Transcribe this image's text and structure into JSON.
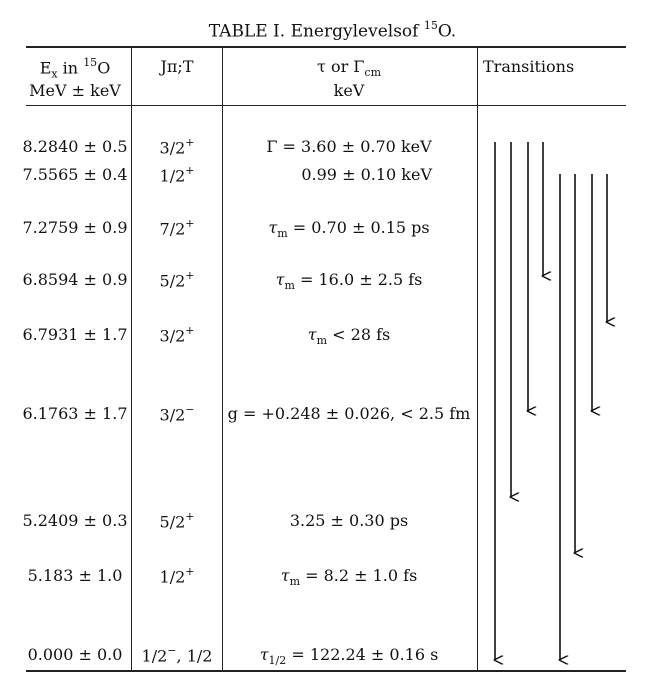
{
  "caption": {
    "prefix": "TABLE I. Energylevelsof ",
    "sup": "15",
    "suffix": "O."
  },
  "headers": {
    "ex_line1_pre": "E",
    "ex_line1_sub": "x",
    "ex_line1_mid": " in ",
    "ex_line1_sup": "15",
    "ex_line1_post": "O",
    "ex_line2": "MeV ± keV",
    "jpt": "Jπ;T",
    "tau_line1_pre": "τ or Γ",
    "tau_line1_sub": "cm",
    "tau_line2": "keV",
    "transitions": "Transitions"
  },
  "rows": [
    {
      "ex": "8.2840 ± 0.5",
      "jpi_base": "3/2",
      "jpi_sup": "+",
      "jpi_tail": "",
      "value_pre": "Γ = 3.60 ± 0.70 keV",
      "value_sub": "",
      "value_post": ""
    },
    {
      "ex": "7.5565 ± 0.4",
      "jpi_base": "1/2",
      "jpi_sup": "+",
      "jpi_tail": "",
      "value_pre": "0.99 ± 0.10 keV",
      "value_sub": "",
      "value_post": ""
    },
    {
      "ex": "7.2759 ± 0.9",
      "jpi_base": "7/2",
      "jpi_sup": "+",
      "jpi_tail": "",
      "value_pre": "τ",
      "value_sub": "m",
      "value_post": " = 0.70 ± 0.15 ps"
    },
    {
      "ex": "6.8594 ± 0.9",
      "jpi_base": "5/2",
      "jpi_sup": "+",
      "jpi_tail": "",
      "value_pre": "τ",
      "value_sub": "m",
      "value_post": " = 16.0 ± 2.5 fs"
    },
    {
      "ex": "6.7931 ± 1.7",
      "jpi_base": "3/2",
      "jpi_sup": "+",
      "jpi_tail": "",
      "value_pre": "τ",
      "value_sub": "m",
      "value_post": " < 28 fs"
    },
    {
      "ex": "6.1763 ± 1.7",
      "jpi_base": "3/2",
      "jpi_sup": "−",
      "jpi_tail": "",
      "value_pre": "g = +0.248 ± 0.026, < 2.5 fm",
      "value_sub": "",
      "value_post": ""
    },
    {
      "ex": "5.2409 ± 0.3",
      "jpi_base": "5/2",
      "jpi_sup": "+",
      "jpi_tail": "",
      "value_pre": "3.25 ± 0.30 ps",
      "value_sub": "",
      "value_post": ""
    },
    {
      "ex": "5.183 ± 1.0",
      "jpi_base": "1/2",
      "jpi_sup": "+",
      "jpi_tail": "",
      "value_pre": "τ",
      "value_sub": "m",
      "value_post": " = 8.2 ± 1.0 fs"
    },
    {
      "ex": "0.000 ± 0.0",
      "jpi_base": "1/2",
      "jpi_sup": "−",
      "jpi_tail": ", 1/2",
      "value_pre": "τ",
      "value_sub": "1/2",
      "value_post": " = 122.24 ± 0.16 s"
    }
  ]
}
